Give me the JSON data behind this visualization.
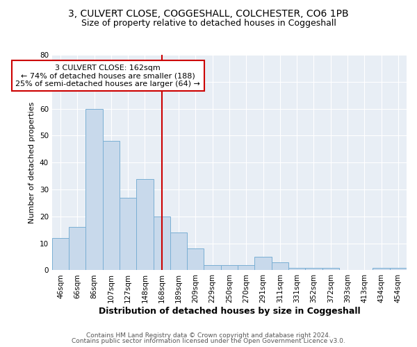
{
  "title": "3, CULVERT CLOSE, COGGESHALL, COLCHESTER, CO6 1PB",
  "subtitle": "Size of property relative to detached houses in Coggeshall",
  "xlabel": "Distribution of detached houses by size in Coggeshall",
  "ylabel": "Number of detached properties",
  "categories": [
    "46sqm",
    "66sqm",
    "86sqm",
    "107sqm",
    "127sqm",
    "148sqm",
    "168sqm",
    "189sqm",
    "209sqm",
    "229sqm",
    "250sqm",
    "270sqm",
    "291sqm",
    "311sqm",
    "331sqm",
    "352sqm",
    "372sqm",
    "393sqm",
    "413sqm",
    "434sqm",
    "454sqm"
  ],
  "values": [
    12,
    16,
    60,
    48,
    27,
    34,
    20,
    14,
    8,
    2,
    2,
    2,
    5,
    3,
    1,
    1,
    1,
    0,
    0,
    1,
    1
  ],
  "bar_color": "#c8d9eb",
  "bar_edge_color": "#7aafd4",
  "marker_line_x_label": "168sqm",
  "marker_line_color": "#cc0000",
  "annotation_line1": "3 CULVERT CLOSE: 162sqm",
  "annotation_line2": "← 74% of detached houses are smaller (188)",
  "annotation_line3": "25% of semi-detached houses are larger (64) →",
  "annotation_box_color": "#ffffff",
  "annotation_box_edge_color": "#cc0000",
  "ylim": [
    0,
    80
  ],
  "yticks": [
    0,
    10,
    20,
    30,
    40,
    50,
    60,
    70,
    80
  ],
  "footer_line1": "Contains HM Land Registry data © Crown copyright and database right 2024.",
  "footer_line2": "Contains public sector information licensed under the Open Government Licence v3.0.",
  "plot_bg_color": "#e8eef5",
  "fig_bg_color": "#ffffff",
  "grid_color": "#ffffff",
  "title_fontsize": 10,
  "subtitle_fontsize": 9,
  "xlabel_fontsize": 9,
  "ylabel_fontsize": 8,
  "tick_fontsize": 7.5,
  "annotation_fontsize": 8,
  "footer_fontsize": 6.5
}
